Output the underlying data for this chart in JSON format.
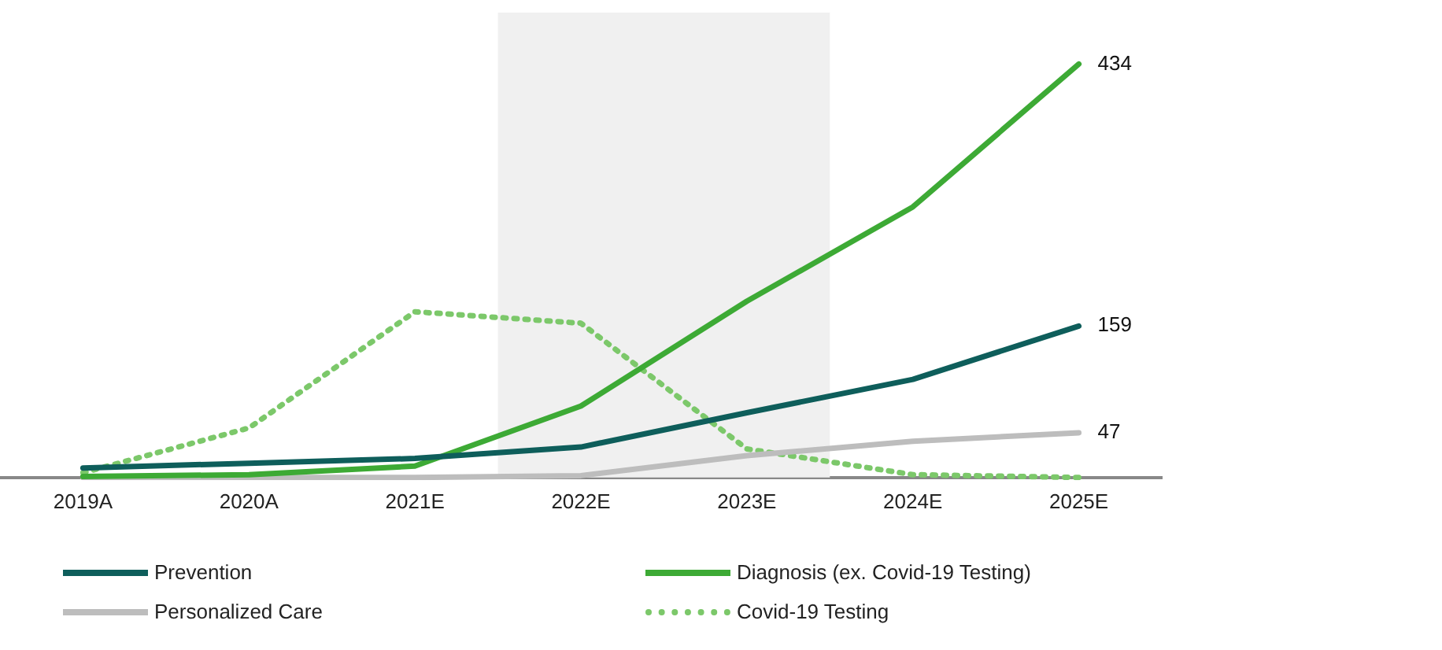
{
  "chart_data": {
    "type": "line",
    "categories": [
      "2019A",
      "2020A",
      "2021E",
      "2022E",
      "2023E",
      "2024E",
      "2025E"
    ],
    "series": [
      {
        "name": "Prevention",
        "color": "#0e5e5b",
        "line_style": "solid",
        "values": [
          10,
          15,
          20,
          32,
          68,
          103,
          159
        ],
        "value_labels": [
          null,
          null,
          null,
          null,
          null,
          null,
          "159"
        ]
      },
      {
        "name": "Diagnosis (ex. Covid-19 Testing)",
        "color": "#3daa35",
        "line_style": "solid",
        "values": [
          1,
          3,
          12,
          75,
          185,
          284,
          434
        ],
        "value_labels": [
          null,
          null,
          null,
          null,
          null,
          null,
          "434"
        ]
      },
      {
        "name": "Personalized Care",
        "color": "#bdbdbd",
        "line_style": "solid",
        "values": [
          0,
          0,
          0,
          2,
          23,
          38,
          47
        ],
        "value_labels": [
          null,
          null,
          null,
          null,
          null,
          null,
          "47"
        ]
      },
      {
        "name": "Covid-19 Testing",
        "color": "#7cc86a",
        "line_style": "dotted",
        "values": [
          5,
          52,
          174,
          162,
          30,
          3,
          0
        ]
      }
    ],
    "bands": [
      {
        "axis": "x",
        "from": "2022E",
        "to": "2023E",
        "color": "#f0f0f0"
      }
    ],
    "marker": "none",
    "grid": false,
    "legend": "bottom"
  }
}
